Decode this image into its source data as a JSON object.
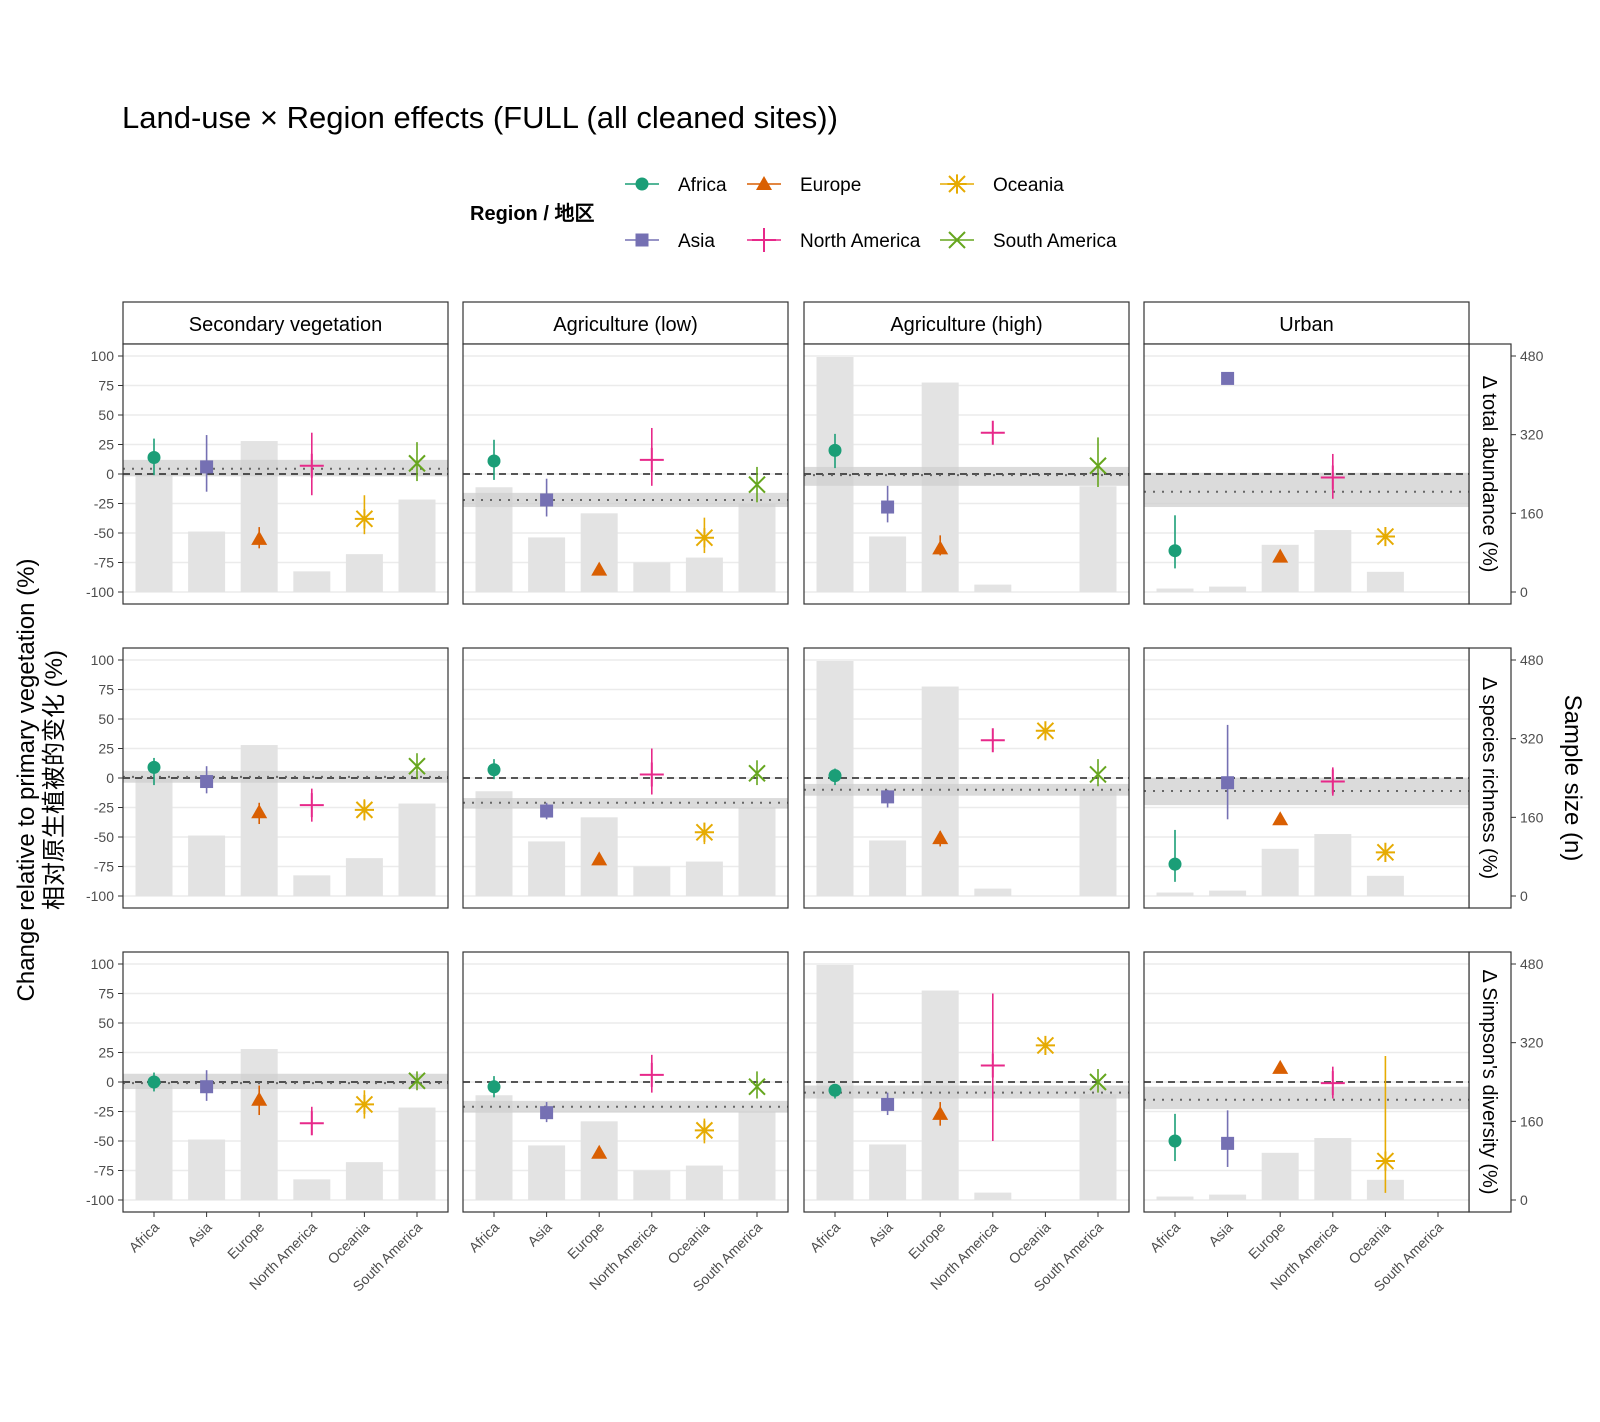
{
  "chart_data": {
    "type": "scatter",
    "title": "Land-use × Region effects (FULL (all cleaned sites))",
    "legend": {
      "title": "Region / 地区",
      "placement": "top",
      "entries": [
        "Africa",
        "Asia",
        "Europe",
        "North America",
        "Oceania",
        "South America"
      ],
      "colors": [
        "#1b9e77",
        "#7570b3",
        "#d95f02",
        "#e7298a",
        "#e6ab02",
        "#66a61e"
      ],
      "shapes": [
        "circle",
        "square",
        "triangle",
        "plus",
        "asterisk",
        "cross"
      ]
    },
    "facet_cols": [
      "Secondary vegetation",
      "Agriculture (low)",
      "Agriculture (high)",
      "Urban"
    ],
    "facet_rows": [
      "Δ total abundance (%)",
      "Δ species richness (%)",
      "Δ Simpson's diversity (%)"
    ],
    "categories": [
      "Africa",
      "Asia",
      "Europe",
      "North America",
      "Oceania",
      "South America"
    ],
    "ylabel": [
      "Change relative to primary vegetation (%)",
      "相对原生植被的变化 (%)"
    ],
    "y2label": "Sample size (n)",
    "ylim": [
      -100,
      100
    ],
    "yticks": [
      "100",
      "75",
      "50",
      "25",
      "0",
      "-25",
      "-50",
      "-75",
      "-100"
    ],
    "y2lim": [
      0,
      480
    ],
    "y2ticks": [
      "480",
      "320",
      "160",
      "0"
    ],
    "grid": true,
    "sample_size": [
      [
        240,
        123,
        307,
        42,
        77,
        188
      ],
      [
        213,
        111,
        160,
        60,
        70,
        180
      ],
      [
        478,
        113,
        426,
        15,
        0,
        215
      ],
      [
        7,
        11,
        96,
        126,
        41,
        0
      ]
    ],
    "panels": [
      [
        {
          "points": [
            [
              14,
              -1,
              30
            ],
            [
              6,
              -15,
              33
            ],
            [
              -55,
              -63,
              -45
            ],
            [
              7,
              -18,
              35
            ],
            [
              -38,
              -51,
              -18
            ],
            [
              9,
              -6,
              27
            ]
          ],
          "band": [
            4.5,
            -2,
            12
          ]
        },
        {
          "points": [
            [
              11,
              -5,
              29
            ],
            [
              -22,
              -36,
              -4
            ],
            [
              -81,
              -81,
              -81
            ],
            [
              12,
              -10,
              39
            ],
            [
              -54,
              -67,
              -37
            ],
            [
              -9,
              -24,
              6
            ]
          ],
          "band": [
            -22,
            -28,
            -16
          ]
        },
        {
          "points": [
            [
              20,
              5,
              34
            ],
            [
              -28,
              -41,
              -10
            ],
            [
              -63,
              -69,
              -52
            ],
            [
              35,
              35,
              35
            ],
            null,
            [
              7,
              -11,
              31
            ]
          ],
          "band": [
            -1,
            -10,
            6
          ]
        },
        {
          "points": [
            [
              -65,
              -80,
              -35
            ],
            [
              81,
              81,
              81
            ],
            [
              -70,
              -70,
              -70
            ],
            [
              -3,
              -21,
              17
            ],
            [
              -53,
              -53,
              -53
            ],
            null
          ],
          "band": [
            -15,
            -28,
            1
          ]
        }
      ],
      [
        {
          "points": [
            [
              9,
              -6,
              17
            ],
            [
              -3,
              -13,
              10
            ],
            [
              -29,
              -39,
              -21
            ],
            [
              -23,
              -37,
              -9
            ],
            [
              -27,
              -36,
              -18
            ],
            [
              10,
              -1,
              21
            ]
          ],
          "band": [
            1,
            -4,
            6
          ]
        },
        {
          "points": [
            [
              7,
              -1,
              16
            ],
            [
              -28,
              -35,
              -21
            ],
            [
              -69,
              -69,
              -69
            ],
            [
              3,
              -14,
              25
            ],
            [
              -46,
              -56,
              -38
            ],
            [
              4,
              -6,
              15
            ]
          ],
          "band": [
            -21,
            -26,
            -17
          ]
        },
        {
          "points": [
            [
              2,
              -6,
              8
            ],
            [
              -16,
              -25,
              -10
            ],
            [
              -51,
              -58,
              -45
            ],
            [
              32,
              32,
              32
            ],
            [
              40,
              40,
              40
            ],
            [
              3,
              -7,
              16
            ]
          ],
          "band": [
            -10,
            -15,
            -5
          ]
        },
        {
          "points": [
            [
              -73,
              -88,
              -44
            ],
            [
              -4,
              -35,
              45
            ],
            [
              -35,
              -35,
              -35
            ],
            [
              -3,
              -15,
              9
            ],
            [
              -63,
              -63,
              -63
            ],
            null
          ],
          "band": [
            -11,
            -23,
            0
          ]
        }
      ],
      [
        {
          "points": [
            [
              0,
              -8,
              8
            ],
            [
              -4,
              -16,
              10
            ],
            [
              -15,
              -28,
              -3
            ],
            [
              -35,
              -45,
              -21
            ],
            [
              -19,
              -31,
              -7
            ],
            [
              1,
              -7,
              9
            ]
          ],
          "band": [
            -1,
            -6,
            7
          ]
        },
        {
          "points": [
            [
              -4,
              -13,
              5
            ],
            [
              -26,
              -34,
              -17
            ],
            [
              -60,
              -60,
              -60
            ],
            [
              6,
              -9,
              23
            ],
            [
              -41,
              -52,
              -31
            ],
            [
              -4,
              -14,
              9
            ]
          ],
          "band": [
            -21,
            -26,
            -16
          ]
        },
        {
          "points": [
            [
              -7,
              -14,
              -2
            ],
            [
              -19,
              -28,
              -9
            ],
            [
              -27,
              -37,
              -17
            ],
            [
              14,
              -50,
              75
            ],
            [
              31,
              31,
              31
            ],
            [
              0,
              -9,
              11
            ]
          ],
          "band": [
            -9,
            -14,
            -3
          ]
        },
        {
          "points": [
            [
              -50,
              -67,
              -27
            ],
            [
              -52,
              -72,
              -24
            ],
            [
              12,
              12,
              12
            ],
            [
              -1,
              -14,
              13
            ],
            [
              -67,
              -94,
              22
            ],
            null
          ],
          "band": [
            -15,
            -23,
            -4
          ]
        }
      ]
    ]
  }
}
